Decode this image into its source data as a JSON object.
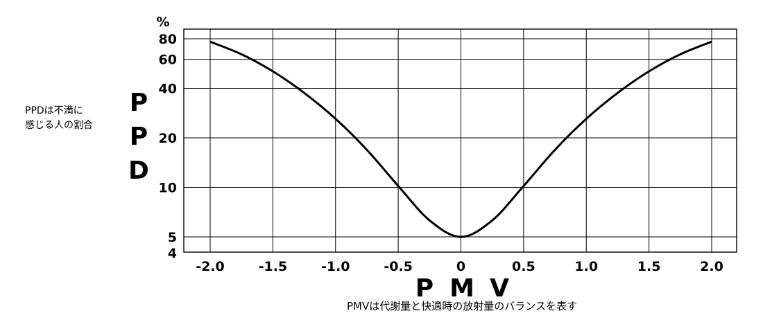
{
  "annotations": {
    "ppd_note": "PPDは不満に\n感じる人の割合",
    "pmv_note": "PMVは代謝量と快適時の放射量のバランスを表す"
  },
  "chart_data": {
    "type": "line",
    "xlabel": "P M V",
    "ylabel": "P P D",
    "yunit": "%",
    "xlim": [
      -2.0,
      2.0
    ],
    "ylim": [
      4,
      80
    ],
    "yscale": "log",
    "grid": true,
    "xticks": [
      -2.0,
      -1.5,
      -1.0,
      -0.5,
      0,
      0.5,
      1.0,
      1.5,
      2.0
    ],
    "xtick_labels": [
      "-2.0",
      "-1.5",
      "-1.0",
      "-0.5",
      "0",
      "0.5",
      "1.0",
      "1.5",
      "2.0"
    ],
    "yticks": [
      4,
      5,
      10,
      20,
      40,
      60,
      80
    ],
    "ytick_labels": [
      "4",
      "5",
      "10",
      "20",
      "40",
      "60",
      "80"
    ],
    "series": [
      {
        "x": [
          -2.0,
          -1.75,
          -1.5,
          -1.25,
          -1.0,
          -0.75,
          -0.5,
          -0.25,
          0,
          0.25,
          0.5,
          0.75,
          1.0,
          1.25,
          1.5,
          1.75,
          2.0
        ],
        "y": [
          76.8,
          64.4,
          50.7,
          37.5,
          26.1,
          16.9,
          10.2,
          6.3,
          5.0,
          6.3,
          10.2,
          16.9,
          26.1,
          37.5,
          50.7,
          64.4,
          76.8
        ]
      }
    ]
  }
}
